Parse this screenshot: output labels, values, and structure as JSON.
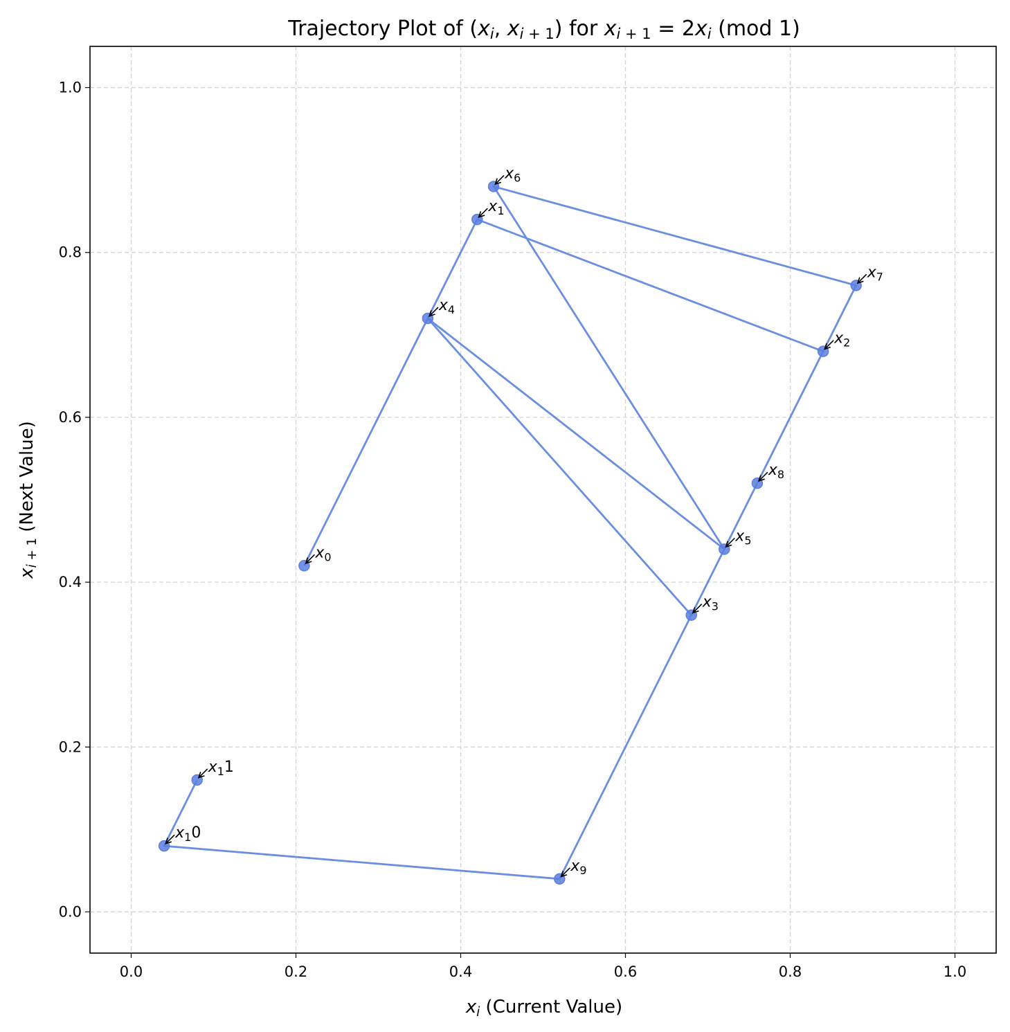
{
  "chart_data": {
    "type": "line",
    "title": {
      "parts": [
        {
          "t": "Trajectory Plot of ("
        },
        {
          "t": "x",
          "i": true
        },
        {
          "t": "i",
          "sub": true,
          "i": true
        },
        {
          "t": ", "
        },
        {
          "t": "x",
          "i": true
        },
        {
          "t": "i",
          "sub": true,
          "i": true
        },
        {
          "t": " + 1",
          "sub": true
        },
        {
          "t": ") for "
        },
        {
          "t": "x",
          "i": true
        },
        {
          "t": "i",
          "sub": true,
          "i": true
        },
        {
          "t": " + 1",
          "sub": true
        },
        {
          "t": " = 2"
        },
        {
          "t": "x",
          "i": true
        },
        {
          "t": "i",
          "sub": true,
          "i": true
        },
        {
          "t": " (mod 1)"
        }
      ]
    },
    "xlabel": {
      "parts": [
        {
          "t": "x",
          "i": true
        },
        {
          "t": "i",
          "sub": true,
          "i": true
        },
        {
          "t": " (Current Value)"
        }
      ]
    },
    "ylabel": {
      "parts": [
        {
          "t": "x",
          "i": true
        },
        {
          "t": "i",
          "sub": true,
          "i": true
        },
        {
          "t": " + 1",
          "sub": true
        },
        {
          "t": " (Next Value)"
        }
      ]
    },
    "xlim": [
      -0.05,
      1.05
    ],
    "ylim": [
      -0.05,
      1.05
    ],
    "xticks": [
      0.0,
      0.2,
      0.4,
      0.6,
      0.8,
      1.0
    ],
    "yticks": [
      0.0,
      0.2,
      0.4,
      0.6,
      0.8,
      1.0
    ],
    "xtick_labels": [
      "0.0",
      "0.2",
      "0.4",
      "0.6",
      "0.8",
      "1.0"
    ],
    "ytick_labels": [
      "0.0",
      "0.2",
      "0.4",
      "0.6",
      "0.8",
      "1.0"
    ],
    "grid": true,
    "series_color": "#6a8ee0",
    "marker_color": "#5b7fdf",
    "points": [
      {
        "x": 0.21,
        "y": 0.42,
        "label": {
          "base": "x",
          "sub": "0"
        }
      },
      {
        "x": 0.42,
        "y": 0.84,
        "label": {
          "base": "x",
          "sub": "1"
        }
      },
      {
        "x": 0.84,
        "y": 0.68,
        "label": {
          "base": "x",
          "sub": "2"
        }
      },
      {
        "x": 0.68,
        "y": 0.36,
        "label": {
          "base": "x",
          "sub": "3"
        }
      },
      {
        "x": 0.36,
        "y": 0.72,
        "label": {
          "base": "x",
          "sub": "4"
        }
      },
      {
        "x": 0.72,
        "y": 0.44,
        "label": {
          "base": "x",
          "sub": "5"
        }
      },
      {
        "x": 0.44,
        "y": 0.88,
        "label": {
          "base": "x",
          "sub": "6"
        }
      },
      {
        "x": 0.88,
        "y": 0.76,
        "label": {
          "base": "x",
          "sub": "7"
        }
      },
      {
        "x": 0.76,
        "y": 0.52,
        "label": {
          "base": "x",
          "sub": "8"
        }
      },
      {
        "x": 0.52,
        "y": 0.04,
        "label": {
          "base": "x",
          "sub": "9"
        }
      },
      {
        "x": 0.04,
        "y": 0.08,
        "label": {
          "base": "x",
          "sub": "1",
          "suffix": "0"
        }
      },
      {
        "x": 0.08,
        "y": 0.16,
        "label": {
          "base": "x",
          "sub": "1",
          "suffix": "1"
        }
      }
    ]
  }
}
